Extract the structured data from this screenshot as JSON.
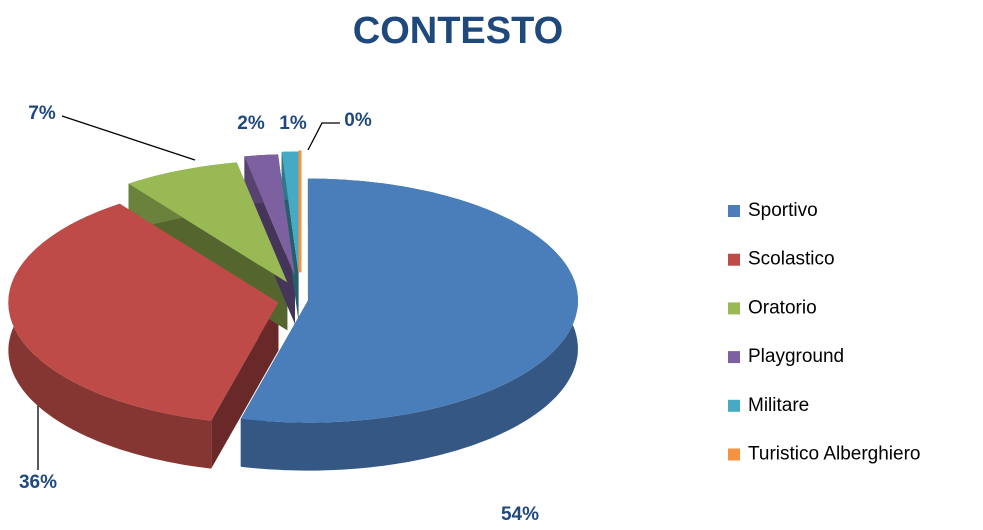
{
  "chart_data": {
    "type": "pie",
    "title": "CONTESTO",
    "categories": [
      "Sportivo",
      "Scolastico",
      "Oratorio",
      "Playground",
      "Militare",
      "Turistico Alberghiero"
    ],
    "values": [
      54,
      36,
      7,
      2,
      1,
      0
    ],
    "value_labels": [
      "54%",
      "36%",
      "7%",
      "2%",
      "1%",
      "0%"
    ],
    "colors": [
      "#4a7ebb",
      "#be4b48",
      "#98b954",
      "#7d60a0",
      "#46aac5",
      "#f69240"
    ],
    "legend": "right"
  }
}
